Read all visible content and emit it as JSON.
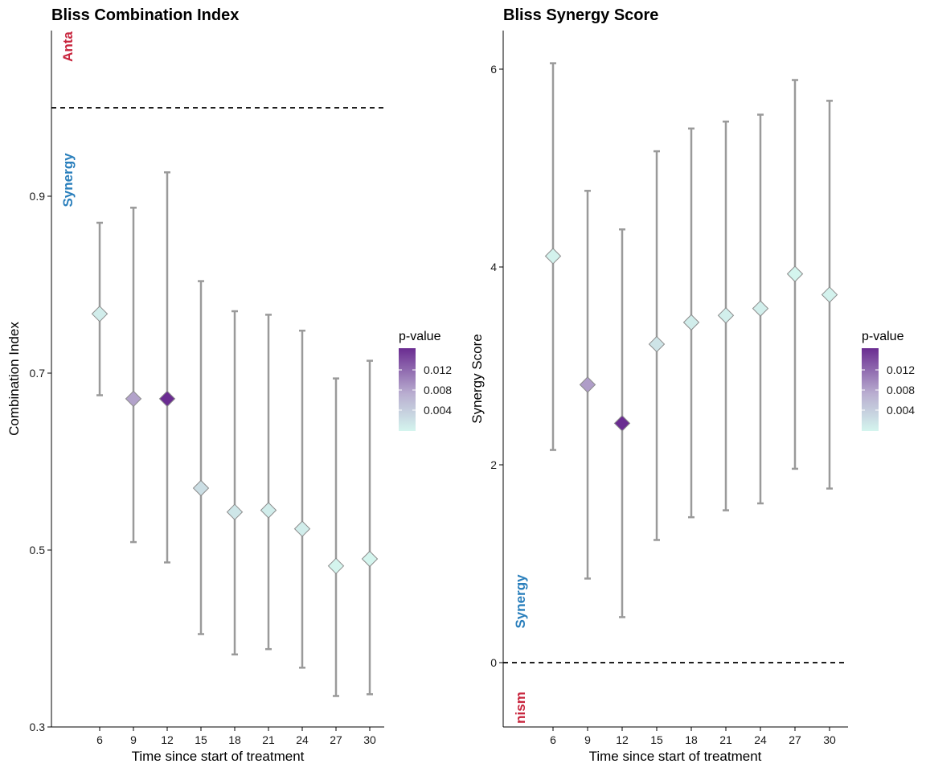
{
  "chart_data": [
    {
      "type": "scatter",
      "title": "Bliss Combination Index",
      "xlabel": "Time since start of treatment",
      "ylabel": "Combination Index",
      "x": [
        6,
        9,
        12,
        15,
        18,
        21,
        24,
        27,
        30
      ],
      "y": [
        0.767,
        0.671,
        0.671,
        0.57,
        0.543,
        0.545,
        0.524,
        0.482,
        0.49
      ],
      "ci_low": [
        0.675,
        0.509,
        0.486,
        0.405,
        0.382,
        0.388,
        0.367,
        0.335,
        0.337
      ],
      "ci_high": [
        0.87,
        0.887,
        0.927,
        0.804,
        0.77,
        0.766,
        0.748,
        0.694,
        0.714
      ],
      "p_value": [
        0.0012,
        0.0075,
        0.0145,
        0.0025,
        0.0018,
        0.0012,
        0.0012,
        0.0005,
        0.0005
      ],
      "ylim": [
        0.3,
        1.08
      ],
      "yticks": [
        "0.3",
        "0.5",
        "0.7",
        "0.9"
      ],
      "reference_line": 1.0,
      "annotations": {
        "top": "Anta",
        "bottom": "Synergy"
      },
      "legend": {
        "title": "p-value",
        "ticks": [
          "0.012",
          "0.008",
          "0.004"
        ],
        "placement": "right"
      },
      "grid": false
    },
    {
      "type": "scatter",
      "title": "Bliss Synergy Score",
      "xlabel": "Time since start of treatment",
      "ylabel": "Synergy Score",
      "x": [
        6,
        9,
        12,
        15,
        18,
        21,
        24,
        27,
        30
      ],
      "y": [
        4.11,
        2.81,
        2.42,
        3.22,
        3.44,
        3.51,
        3.58,
        3.93,
        3.72
      ],
      "ci_low": [
        2.15,
        0.85,
        0.46,
        1.24,
        1.47,
        1.54,
        1.61,
        1.96,
        1.76
      ],
      "ci_high": [
        6.06,
        4.77,
        4.38,
        5.17,
        5.4,
        5.47,
        5.54,
        5.89,
        5.68
      ],
      "p_value": [
        0.0008,
        0.0078,
        0.0145,
        0.002,
        0.0012,
        0.001,
        0.001,
        0.0005,
        0.0008
      ],
      "ylim": [
        -0.62,
        6.38
      ],
      "yticks": [
        "0",
        "2",
        "4",
        "6"
      ],
      "reference_line": 0,
      "annotations": {
        "top": "Synergy",
        "bottom": "nism"
      },
      "legend": {
        "title": "p-value",
        "ticks": [
          "0.012",
          "0.008",
          "0.004"
        ],
        "placement": "right"
      },
      "grid": false
    }
  ],
  "colors": {
    "errorbar": "#9a9a9a",
    "point_outline": "#8c8c8c",
    "synergy_label": "#2a7fbc",
    "antagonism_label": "#c8263e",
    "gradient_low": "#d4f5ee",
    "gradient_mid": "#b9aed0",
    "gradient_high": "#6a2c91"
  }
}
